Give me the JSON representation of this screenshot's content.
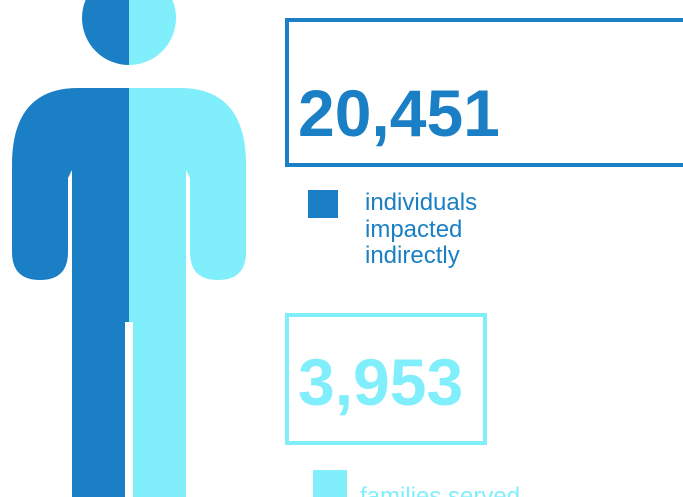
{
  "stats": [
    {
      "value": "20,451",
      "label_lines": [
        "individuals",
        "impacted",
        "indirectly"
      ]
    },
    {
      "value": "3,953",
      "label_lines": [
        "families served"
      ]
    }
  ]
}
